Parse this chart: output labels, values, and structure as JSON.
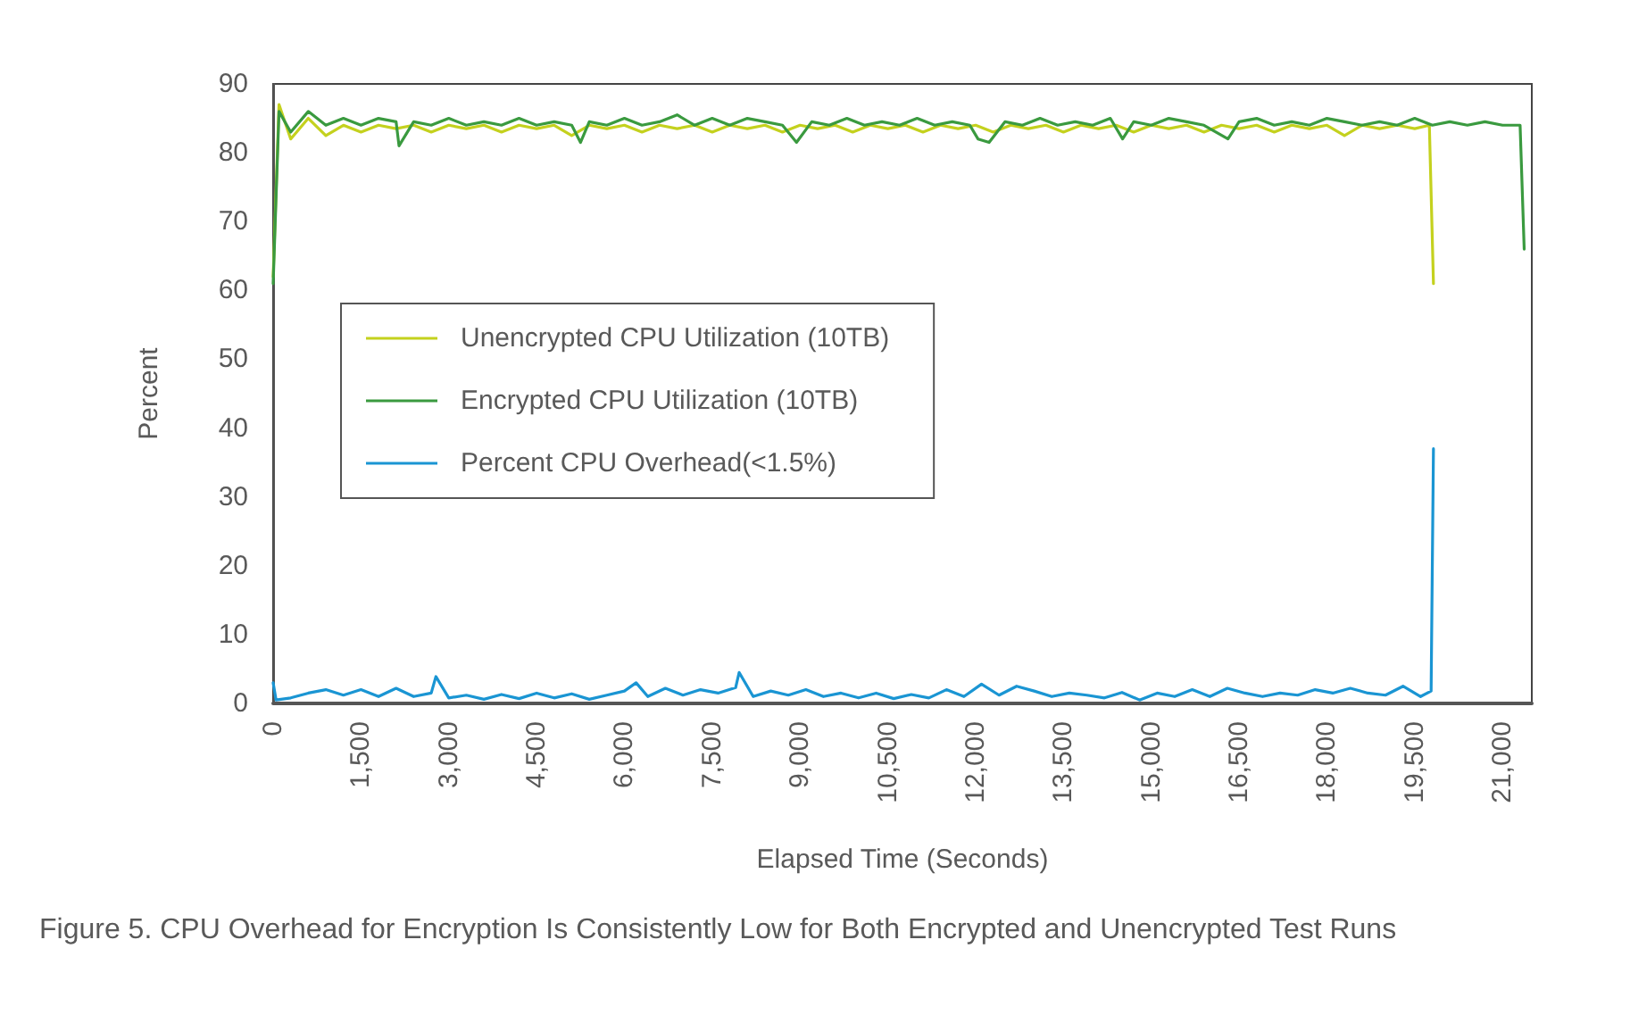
{
  "chart_data": {
    "type": "line",
    "xlabel": "Elapsed Time (Seconds)",
    "ylabel": "Percent",
    "annotations": [
      "Figure 5. CPU Overhead for Encryption Is Consistently Low for Both Encrypted and Unencrypted Test Runs"
    ],
    "xlim": [
      0,
      21500
    ],
    "xticks": [
      {
        "value": 0,
        "label": "0"
      },
      {
        "value": 1500,
        "label": "1,500"
      },
      {
        "value": 3000,
        "label": "3,000"
      },
      {
        "value": 4500,
        "label": "4,500"
      },
      {
        "value": 6000,
        "label": "6,000"
      },
      {
        "value": 7500,
        "label": "7,500"
      },
      {
        "value": 9000,
        "label": "9,000"
      },
      {
        "value": 10500,
        "label": "10,500"
      },
      {
        "value": 12000,
        "label": "12,000"
      },
      {
        "value": 13500,
        "label": "13,500"
      },
      {
        "value": 15000,
        "label": "15,000"
      },
      {
        "value": 16500,
        "label": "16,500"
      },
      {
        "value": 18000,
        "label": "18,000"
      },
      {
        "value": 19500,
        "label": "19,500"
      },
      {
        "value": 21000,
        "label": "21,000"
      }
    ],
    "ylim": [
      0,
      90
    ],
    "yticks": [
      0,
      10,
      20,
      30,
      40,
      50,
      60,
      70,
      80,
      90
    ],
    "grid": false,
    "legend": "left",
    "marker": "none",
    "line_style": "solid",
    "series": [
      {
        "name": "Unencrypted CPU Utilization (10TB)",
        "color": "#c4d11e",
        "x": [
          0,
          100,
          300,
          600,
          900,
          1200,
          1500,
          1800,
          2100,
          2400,
          2700,
          3000,
          3300,
          3600,
          3900,
          4200,
          4500,
          4800,
          5100,
          5400,
          5700,
          6000,
          6300,
          6600,
          6900,
          7200,
          7500,
          7800,
          8100,
          8400,
          8700,
          9000,
          9300,
          9600,
          9900,
          10200,
          10500,
          10800,
          11100,
          11400,
          11700,
          12000,
          12300,
          12600,
          12900,
          13200,
          13500,
          13800,
          14100,
          14400,
          14700,
          15000,
          15300,
          15600,
          15900,
          16200,
          16500,
          16800,
          17100,
          17400,
          17700,
          18000,
          18300,
          18600,
          18900,
          19200,
          19500,
          19750,
          19820
        ],
        "values": [
          62,
          87,
          82,
          85,
          82.5,
          84,
          83,
          84,
          83.5,
          84,
          83,
          84,
          83.5,
          84,
          83,
          84,
          83.5,
          84,
          82.5,
          84,
          83.5,
          84,
          83,
          84,
          83.5,
          84,
          83,
          84,
          83.5,
          84,
          83,
          84,
          83.5,
          84,
          83,
          84,
          83.5,
          84,
          83,
          84,
          83.5,
          84,
          83,
          84,
          83.5,
          84,
          83,
          84,
          83.5,
          84,
          83,
          84,
          83.5,
          84,
          83,
          84,
          83.5,
          84,
          83,
          84,
          83.5,
          84,
          82.5,
          84,
          83.5,
          84,
          83.5,
          84,
          61
        ]
      },
      {
        "name": "Encrypted CPU Utilization (10TB)",
        "color": "#3a9a3f",
        "x": [
          0,
          100,
          300,
          600,
          900,
          1200,
          1500,
          1800,
          2100,
          2150,
          2400,
          2700,
          3000,
          3300,
          3600,
          3900,
          4200,
          4500,
          4800,
          5100,
          5250,
          5400,
          5700,
          6000,
          6300,
          6600,
          6900,
          7200,
          7500,
          7800,
          8100,
          8400,
          8700,
          8940,
          9200,
          9500,
          9800,
          10100,
          10400,
          10700,
          11000,
          11300,
          11600,
          11900,
          12040,
          12230,
          12500,
          12800,
          13100,
          13400,
          13700,
          14000,
          14300,
          14510,
          14700,
          15000,
          15300,
          15600,
          15900,
          16310,
          16500,
          16800,
          17100,
          17400,
          17700,
          18000,
          18300,
          18600,
          18900,
          19200,
          19500,
          19800,
          20100,
          20400,
          20700,
          21000,
          21300,
          21370
        ],
        "values": [
          61,
          86,
          83,
          86,
          84,
          85,
          84,
          85,
          84.5,
          81,
          84.5,
          84,
          85,
          84,
          84.5,
          84,
          85,
          84,
          84.5,
          84,
          81.5,
          84.5,
          84,
          85,
          84,
          84.5,
          85.5,
          84,
          85,
          84,
          85,
          84.5,
          84,
          81.5,
          84.5,
          84,
          85,
          84,
          84.5,
          84,
          85,
          84,
          84.5,
          84,
          82,
          81.5,
          84.5,
          84,
          85,
          84,
          84.5,
          84,
          85,
          82,
          84.5,
          84,
          85,
          84.5,
          84,
          82,
          84.5,
          85,
          84,
          84.5,
          84,
          85,
          84.5,
          84,
          84.5,
          84,
          85,
          84,
          84.5,
          84,
          84.5,
          84,
          84,
          66
        ]
      },
      {
        "name": "Percent CPU Overhead(<1.5%)",
        "color": "#1a95d3",
        "x": [
          0,
          50,
          300,
          600,
          900,
          1200,
          1500,
          1800,
          2100,
          2400,
          2700,
          2780,
          3000,
          3300,
          3600,
          3900,
          4200,
          4500,
          4800,
          5100,
          5400,
          5700,
          6000,
          6200,
          6400,
          6700,
          7000,
          7300,
          7600,
          7900,
          7960,
          8200,
          8500,
          8800,
          9100,
          9400,
          9700,
          10000,
          10300,
          10600,
          10900,
          11200,
          11500,
          11800,
          12100,
          12400,
          12700,
          13000,
          13300,
          13600,
          13900,
          14200,
          14500,
          14800,
          15100,
          15400,
          15700,
          16000,
          16300,
          16600,
          16900,
          17200,
          17500,
          17800,
          18100,
          18400,
          18700,
          19000,
          19300,
          19600,
          19780,
          19820
        ],
        "values": [
          3,
          0.5,
          0.8,
          1.5,
          2,
          1.2,
          2,
          1,
          2.2,
          1,
          1.5,
          3.9,
          0.8,
          1.2,
          0.6,
          1.3,
          0.7,
          1.5,
          0.8,
          1.4,
          0.6,
          1.2,
          1.8,
          3,
          1,
          2.2,
          1.2,
          2,
          1.5,
          2.3,
          4.5,
          1,
          1.8,
          1.2,
          2,
          1,
          1.5,
          0.8,
          1.5,
          0.7,
          1.3,
          0.8,
          2,
          1,
          2.8,
          1.2,
          2.5,
          1.8,
          1,
          1.5,
          1.2,
          0.8,
          1.6,
          0.5,
          1.5,
          1,
          2,
          1,
          2.2,
          1.5,
          1,
          1.5,
          1.2,
          2,
          1.5,
          2.2,
          1.5,
          1.2,
          2.5,
          1,
          1.8,
          37
        ]
      }
    ]
  }
}
